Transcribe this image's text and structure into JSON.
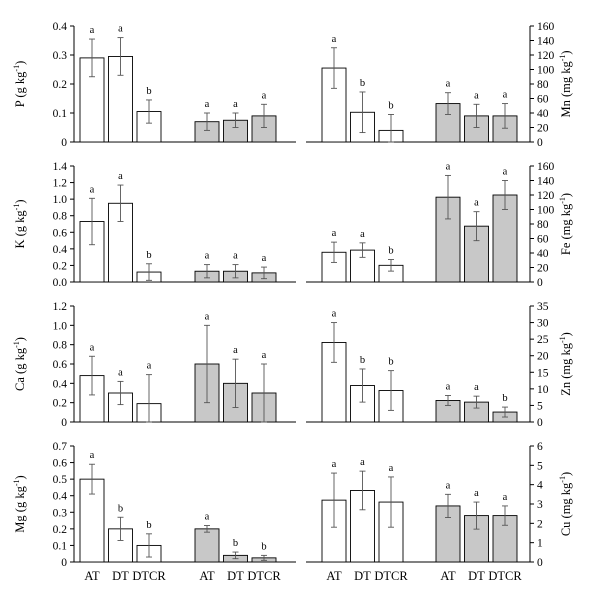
{
  "colors": {
    "group_1": "#ffffff",
    "group_2": "#c8c8c8",
    "stroke": "#000000",
    "error_bar": "#555555"
  },
  "chart_data": [
    {
      "type": "bar",
      "side": "left",
      "ylabel": [
        "P (g kg",
        "-1",
        ")"
      ],
      "ylim": [
        0,
        0.4
      ],
      "yticks": [
        "0",
        "0.1",
        "0.2",
        "0.3",
        "0.4"
      ],
      "categories": [
        "AT",
        "DT",
        "DTCR"
      ],
      "series": [
        {
          "values": [
            0.29,
            0.295,
            0.105
          ],
          "errors": [
            0.065,
            0.065,
            0.04
          ],
          "letters": [
            "a",
            "a",
            "b"
          ]
        },
        {
          "values": [
            0.07,
            0.075,
            0.09
          ],
          "errors": [
            0.03,
            0.025,
            0.04
          ],
          "letters": [
            "a",
            "a",
            "a"
          ]
        }
      ]
    },
    {
      "type": "bar",
      "side": "right",
      "ylabel": [
        "Mn (mg kg",
        "-1",
        ")"
      ],
      "ylim": [
        0,
        160
      ],
      "yticks": [
        "0",
        "20",
        "40",
        "60",
        "80",
        "100",
        "120",
        "140",
        "160"
      ],
      "categories": [
        "AT",
        "DT",
        "DTCR"
      ],
      "series": [
        {
          "values": [
            102,
            41,
            16
          ],
          "errors": [
            28,
            28,
            22
          ],
          "letters": [
            "a",
            "b",
            "b"
          ]
        },
        {
          "values": [
            53,
            36,
            36
          ],
          "errors": [
            15,
            16,
            17
          ],
          "letters": [
            "a",
            "a",
            "a"
          ]
        }
      ]
    },
    {
      "type": "bar",
      "side": "left",
      "ylabel": [
        "K (g kg",
        "-1",
        ")"
      ],
      "ylim": [
        0,
        1.4
      ],
      "yticks": [
        "0.0",
        "0.2",
        "0.4",
        "0.6",
        "0.8",
        "1.0",
        "1.2",
        "1.4"
      ],
      "categories": [
        "AT",
        "DT",
        "DTCR"
      ],
      "series": [
        {
          "values": [
            0.73,
            0.95,
            0.12
          ],
          "errors": [
            0.28,
            0.22,
            0.1
          ],
          "letters": [
            "a",
            "a",
            "b"
          ]
        },
        {
          "values": [
            0.13,
            0.13,
            0.11
          ],
          "errors": [
            0.08,
            0.08,
            0.07
          ],
          "letters": [
            "a",
            "a",
            "a"
          ]
        }
      ]
    },
    {
      "type": "bar",
      "side": "right",
      "ylabel": [
        "Fe (mg kg",
        "-1",
        ")"
      ],
      "ylim": [
        0,
        160
      ],
      "yticks": [
        "0",
        "20",
        "40",
        "60",
        "80",
        "100",
        "120",
        "140",
        "160"
      ],
      "categories": [
        "AT",
        "DT",
        "DTCR"
      ],
      "series": [
        {
          "values": [
            41,
            44,
            23
          ],
          "errors": [
            14,
            10,
            8
          ],
          "letters": [
            "a",
            "a",
            "b"
          ]
        },
        {
          "values": [
            117,
            77,
            120
          ],
          "errors": [
            30,
            20,
            20
          ],
          "letters": [
            "a",
            "a",
            "a"
          ]
        }
      ]
    },
    {
      "type": "bar",
      "side": "left",
      "ylabel": [
        "Ca (g kg",
        "-1",
        ")"
      ],
      "ylim": [
        0,
        1.2
      ],
      "yticks": [
        "0",
        "0.2",
        "0.4",
        "0.6",
        "0.8",
        "1.0",
        "1.2"
      ],
      "categories": [
        "AT",
        "DT",
        "DTCR"
      ],
      "series": [
        {
          "values": [
            0.48,
            0.3,
            0.19
          ],
          "errors": [
            0.2,
            0.12,
            0.3
          ],
          "letters": [
            "a",
            "a",
            "a"
          ]
        },
        {
          "values": [
            0.6,
            0.4,
            0.3
          ],
          "errors": [
            0.4,
            0.25,
            0.3
          ],
          "letters": [
            "a",
            "a",
            "a"
          ]
        }
      ]
    },
    {
      "type": "bar",
      "side": "right",
      "ylabel": [
        "Zn (mg kg",
        "-1",
        ")"
      ],
      "ylim": [
        0,
        35
      ],
      "yticks": [
        "0",
        "5",
        "10",
        "15",
        "20",
        "25",
        "30",
        "35"
      ],
      "categories": [
        "AT",
        "DT",
        "DTCR"
      ],
      "series": [
        {
          "values": [
            24,
            11,
            9.5
          ],
          "errors": [
            6,
            5,
            6
          ],
          "letters": [
            "a",
            "b",
            "b"
          ]
        },
        {
          "values": [
            6.5,
            6,
            3
          ],
          "errors": [
            1.5,
            1.8,
            1.5
          ],
          "letters": [
            "a",
            "a",
            "b"
          ]
        }
      ]
    },
    {
      "type": "bar",
      "side": "left",
      "ylabel": [
        "Mg (g kg",
        "-1",
        ")"
      ],
      "ylim": [
        0,
        0.7
      ],
      "yticks": [
        "0",
        "0.1",
        "0.2",
        "0.3",
        "0.4",
        "0.5",
        "0.6",
        "0.7"
      ],
      "categories": [
        "AT",
        "DT",
        "DTCR"
      ],
      "series": [
        {
          "values": [
            0.5,
            0.2,
            0.1
          ],
          "errors": [
            0.09,
            0.07,
            0.07
          ],
          "letters": [
            "a",
            "b",
            "b"
          ]
        },
        {
          "values": [
            0.2,
            0.04,
            0.025
          ],
          "errors": [
            0.02,
            0.02,
            0.015
          ],
          "letters": [
            "a",
            "b",
            "b"
          ]
        }
      ]
    },
    {
      "type": "bar",
      "side": "right",
      "ylabel": [
        "Cu (mg kg",
        "-1",
        ")"
      ],
      "ylim": [
        0,
        6
      ],
      "yticks": [
        "0",
        "1",
        "2",
        "3",
        "4",
        "5",
        "6"
      ],
      "categories": [
        "AT",
        "DT",
        "DTCR"
      ],
      "series": [
        {
          "values": [
            3.2,
            3.7,
            3.1
          ],
          "errors": [
            1.4,
            1.0,
            1.3
          ],
          "letters": [
            "a",
            "a",
            "a"
          ]
        },
        {
          "values": [
            2.9,
            2.4,
            2.4
          ],
          "errors": [
            0.6,
            0.7,
            0.5
          ],
          "letters": [
            "a",
            "a",
            "a"
          ]
        }
      ]
    }
  ]
}
